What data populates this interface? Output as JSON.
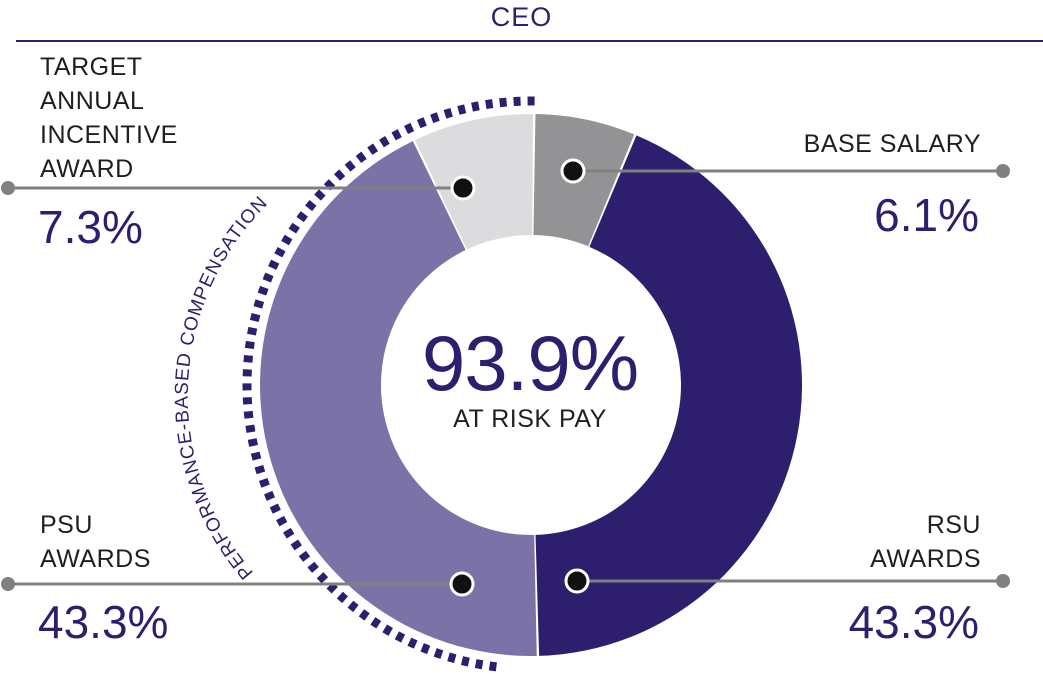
{
  "header": {
    "title": "CEO"
  },
  "center": {
    "value": "93.9%",
    "label": "AT RISK PAY"
  },
  "arc_label": "PERFORMANCE-BASED COMPENSATION",
  "colors": {
    "base_salary": "#939396",
    "rsu": "#2e1f6e",
    "psu": "#7b73a8",
    "annual_incentive": "#dcdcde",
    "accent": "#2e1f6e",
    "leader": "#808080"
  },
  "labels": {
    "target_annual": [
      "TARGET",
      "ANNUAL",
      "INCENTIVE",
      "AWARD"
    ],
    "base_salary": "BASE SALARY",
    "psu": [
      "PSU",
      "AWARDS"
    ],
    "rsu": [
      "RSU",
      "AWARDS"
    ]
  },
  "chart_data": {
    "type": "pie",
    "title": "CEO",
    "slices": [
      {
        "name": "BASE SALARY",
        "value": 6.1,
        "label": "6.1%"
      },
      {
        "name": "RSU AWARDS",
        "value": 43.3,
        "label": "43.3%"
      },
      {
        "name": "PSU AWARDS",
        "value": 43.3,
        "label": "43.3%"
      },
      {
        "name": "TARGET ANNUAL INCENTIVE AWARD",
        "value": 7.3,
        "label": "7.3%"
      }
    ],
    "center_text": "93.9%",
    "center_subtext": "AT RISK PAY"
  }
}
